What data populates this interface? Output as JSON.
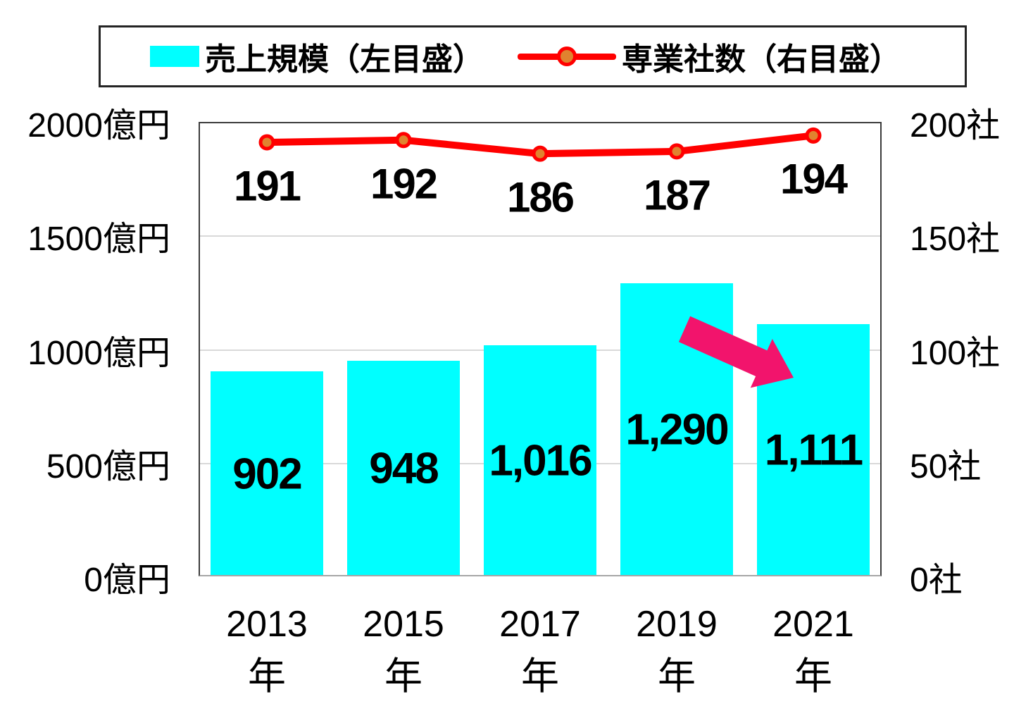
{
  "chart_data": {
    "type": "bar+line combo",
    "categories": [
      "2013",
      "2015",
      "2017",
      "2019",
      "2021"
    ],
    "category_suffix": "年",
    "series": [
      {
        "name": "売上規模（左目盛）",
        "type": "bar",
        "axis": "left",
        "color": "#00ffff",
        "values": [
          902,
          948,
          1016,
          1290,
          1111
        ],
        "labels": [
          "902",
          "948",
          "1,016",
          "1,290",
          "1,111"
        ]
      },
      {
        "name": "専業社数（右目盛）",
        "type": "line",
        "axis": "right",
        "color": "#ff0000",
        "marker_fill": "#e0832f",
        "values": [
          191,
          192,
          186,
          187,
          194
        ],
        "labels": [
          "191",
          "192",
          "186",
          "187",
          "194"
        ]
      }
    ],
    "left_axis": {
      "min": 0,
      "max": 2000,
      "ticks": [
        {
          "value": 0,
          "label": "0億円"
        },
        {
          "value": 500,
          "label": "500億円"
        },
        {
          "value": 1000,
          "label": "1000億円"
        },
        {
          "value": 1500,
          "label": "1500億円"
        },
        {
          "value": 2000,
          "label": "2000億円"
        }
      ]
    },
    "right_axis": {
      "min": 0,
      "max": 200,
      "ticks": [
        {
          "value": 0,
          "label": "0社"
        },
        {
          "value": 50,
          "label": "50社"
        },
        {
          "value": 100,
          "label": "100社"
        },
        {
          "value": 150,
          "label": "150社"
        },
        {
          "value": 200,
          "label": "200社"
        }
      ]
    },
    "legend_position": "top",
    "grid": true,
    "annotation": {
      "shape": "block-arrow-down-right",
      "color": "#f2146c",
      "from_category": "2019",
      "to_category": "2021"
    }
  }
}
